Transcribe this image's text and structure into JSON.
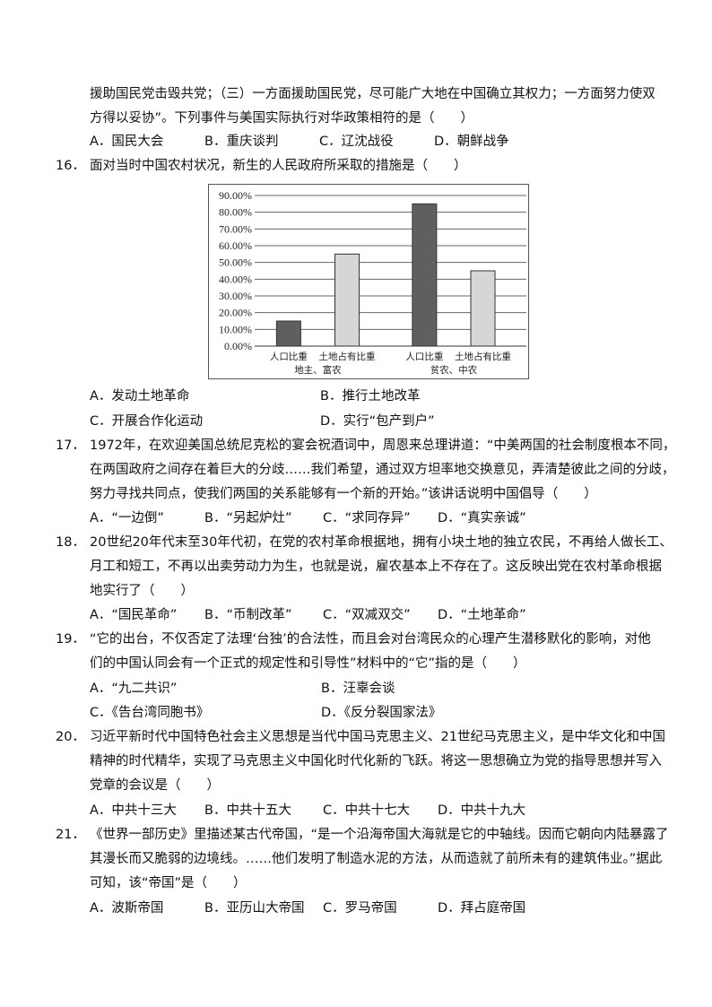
{
  "q15": {
    "lines": [
      "援助国民党击毁共党；（三）一方面援助国民党，尽可能广大地在中国确立其权力；一方面努力使双",
      "方得以妥协”。下列事件与美国实际执行对华政策相符的是（　　）"
    ],
    "options": [
      "A．国民大会",
      "B．重庆谈判",
      "C．辽沈战役",
      "D．朝鲜战争"
    ]
  },
  "q16": {
    "number": "16．",
    "lines": [
      "面对当时中国农村状况，新生的人民政府所采取的措施是（　　）"
    ],
    "options": [
      "A．发动土地革命",
      "B．推行土地改革",
      "C．开展合作化运动",
      "D．实行“包产到户”"
    ]
  },
  "chart_data": {
    "type": "bar",
    "groups": [
      "地主、富农",
      "贫农、中农"
    ],
    "categories": [
      "人口比重",
      "土地占有比重"
    ],
    "series": [
      {
        "values": [
          15,
          85
        ],
        "color": "#5f5f5f"
      },
      {
        "values": [
          55,
          45
        ],
        "color": "#d6d6d6"
      }
    ],
    "ylim": [
      0,
      90
    ],
    "yticks": [
      "0.00%",
      "10.00%",
      "20.00%",
      "30.00%",
      "40.00%",
      "50.00%",
      "60.00%",
      "70.00%",
      "80.00%",
      "90.00%"
    ],
    "grid": true
  },
  "q17": {
    "number": "17．",
    "lines": [
      "1972年，在欢迎美国总统尼克松的宴会祝酒词中，周恩来总理讲道：“中美两国的社会制度根本不同，",
      "在两国政府之间存在着巨大的分歧……我们希望，通过双方坦率地交换意见，弄清楚彼此之间的分歧，",
      "努力寻找共同点，使我们两国的关系能够有一个新的开始。”该讲话说明中国倡导（　　）"
    ],
    "options": [
      "A．“一边倒”",
      "B．“另起炉灶”",
      "C．“求同存异”",
      "D．“真实亲诚”"
    ]
  },
  "q18": {
    "number": "18．",
    "lines": [
      "20世纪20年代末至30年代初，在党的农村革命根据地，拥有小块土地的独立农民，不再给人做长工、",
      "月工和短工，不再以出卖劳动力为生，也就是说，雇农基本上不存在了。这反映出党在农村革命根据",
      "地实行了（　　）"
    ],
    "options": [
      "A．“国民革命”",
      "B．“币制改革”",
      "C．“双减双交”",
      "D．“土地革命”"
    ]
  },
  "q19": {
    "number": "19．",
    "lines": [
      "“它的出台，不仅否定了法理‘台独’的合法性，而且会对台湾民众的心理产生潜移默化的影响，对他",
      "们的中国认同会有一个正式的规定性和引导性”材料中的“它”指的是（　　）"
    ],
    "options": [
      "A．“九二共识”",
      "B．汪辜会谈",
      "C．《告台湾同胞书》",
      "D．《反分裂国家法》"
    ]
  },
  "q20": {
    "number": "20．",
    "lines": [
      "习近平新时代中国特色社会主义思想是当代中国马克思主义、21世纪马克思主义，是中华文化和中国",
      "精神的时代精华，实现了马克思主义中国化时代化新的飞跃。将这一思想确立为党的指导思想并写入",
      "党章的会议是（　　）"
    ],
    "options": [
      "A．中共十三大",
      "B．中共十五大",
      "C．中共十七大",
      "D．中共十九大"
    ]
  },
  "q21": {
    "number": "21．",
    "lines": [
      "《世界一部历史》里描述某古代帝国，“是一个沿海帝国大海就是它的中轴线。因而它朝向内陆暴露了",
      "其漫长而又脆弱的边境线。……他们发明了制造水泥的方法，从而造就了前所未有的建筑伟业。”据此",
      "可知，该“帝国”是（　　）"
    ],
    "options": [
      "A．波斯帝国",
      "B．亚历山大帝国",
      "C．罗马帝国",
      "D．拜占庭帝国"
    ]
  }
}
